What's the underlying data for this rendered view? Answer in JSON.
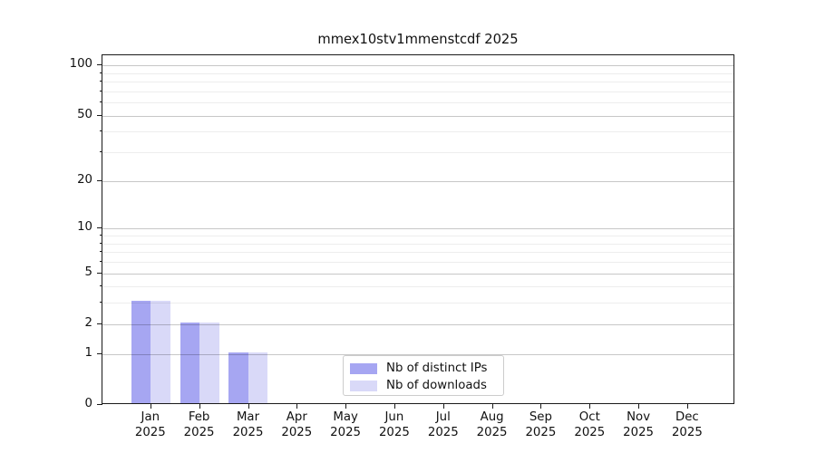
{
  "chart_data": {
    "type": "bar",
    "title": "mmex10stv1mmenstcdf 2025",
    "categories": [
      "Jan 2025",
      "Feb 2025",
      "Mar 2025",
      "Apr 2025",
      "May 2025",
      "Jun 2025",
      "Jul 2025",
      "Aug 2025",
      "Sep 2025",
      "Oct 2025",
      "Nov 2025",
      "Dec 2025"
    ],
    "month_labels": [
      "Jan",
      "Feb",
      "Mar",
      "Apr",
      "May",
      "Jun",
      "Jul",
      "Aug",
      "Sep",
      "Oct",
      "Nov",
      "Dec"
    ],
    "year_label": "2025",
    "series": [
      {
        "name": "Nb of distinct IPs",
        "color": "#a6a6f2",
        "values": [
          3,
          2,
          1,
          0,
          0,
          0,
          0,
          0,
          0,
          0,
          0,
          0
        ]
      },
      {
        "name": "Nb of downloads",
        "color": "#d9d9f8",
        "values": [
          3,
          2,
          1,
          0,
          0,
          0,
          0,
          0,
          0,
          0,
          0,
          0
        ]
      }
    ],
    "xlabel": "",
    "ylabel": "",
    "y_axis": {
      "scale": "log10(value+1)",
      "major_ticks": [
        0,
        1,
        2,
        5,
        10,
        20,
        50,
        100
      ],
      "major_tick_labels": [
        "0",
        "1",
        "2",
        "5",
        "10",
        "20",
        "50",
        "100"
      ],
      "minor_ticks": [
        3,
        4,
        6,
        7,
        8,
        9,
        30,
        40,
        60,
        70,
        80,
        90
      ],
      "ylim": [
        0,
        115
      ]
    },
    "grid": {
      "orientation": "horizontal",
      "major_color": "#c7c7c7",
      "minor_color": "#ececec"
    },
    "legend": {
      "position": "lower-center-inside",
      "items": [
        "Nb of distinct IPs",
        "Nb of downloads"
      ]
    }
  },
  "colors": {
    "background": "#ffffff",
    "spine": "#1a1a1a",
    "bar_distinct_ips": "#a6a6f2",
    "bar_downloads": "#d9d9f8"
  }
}
